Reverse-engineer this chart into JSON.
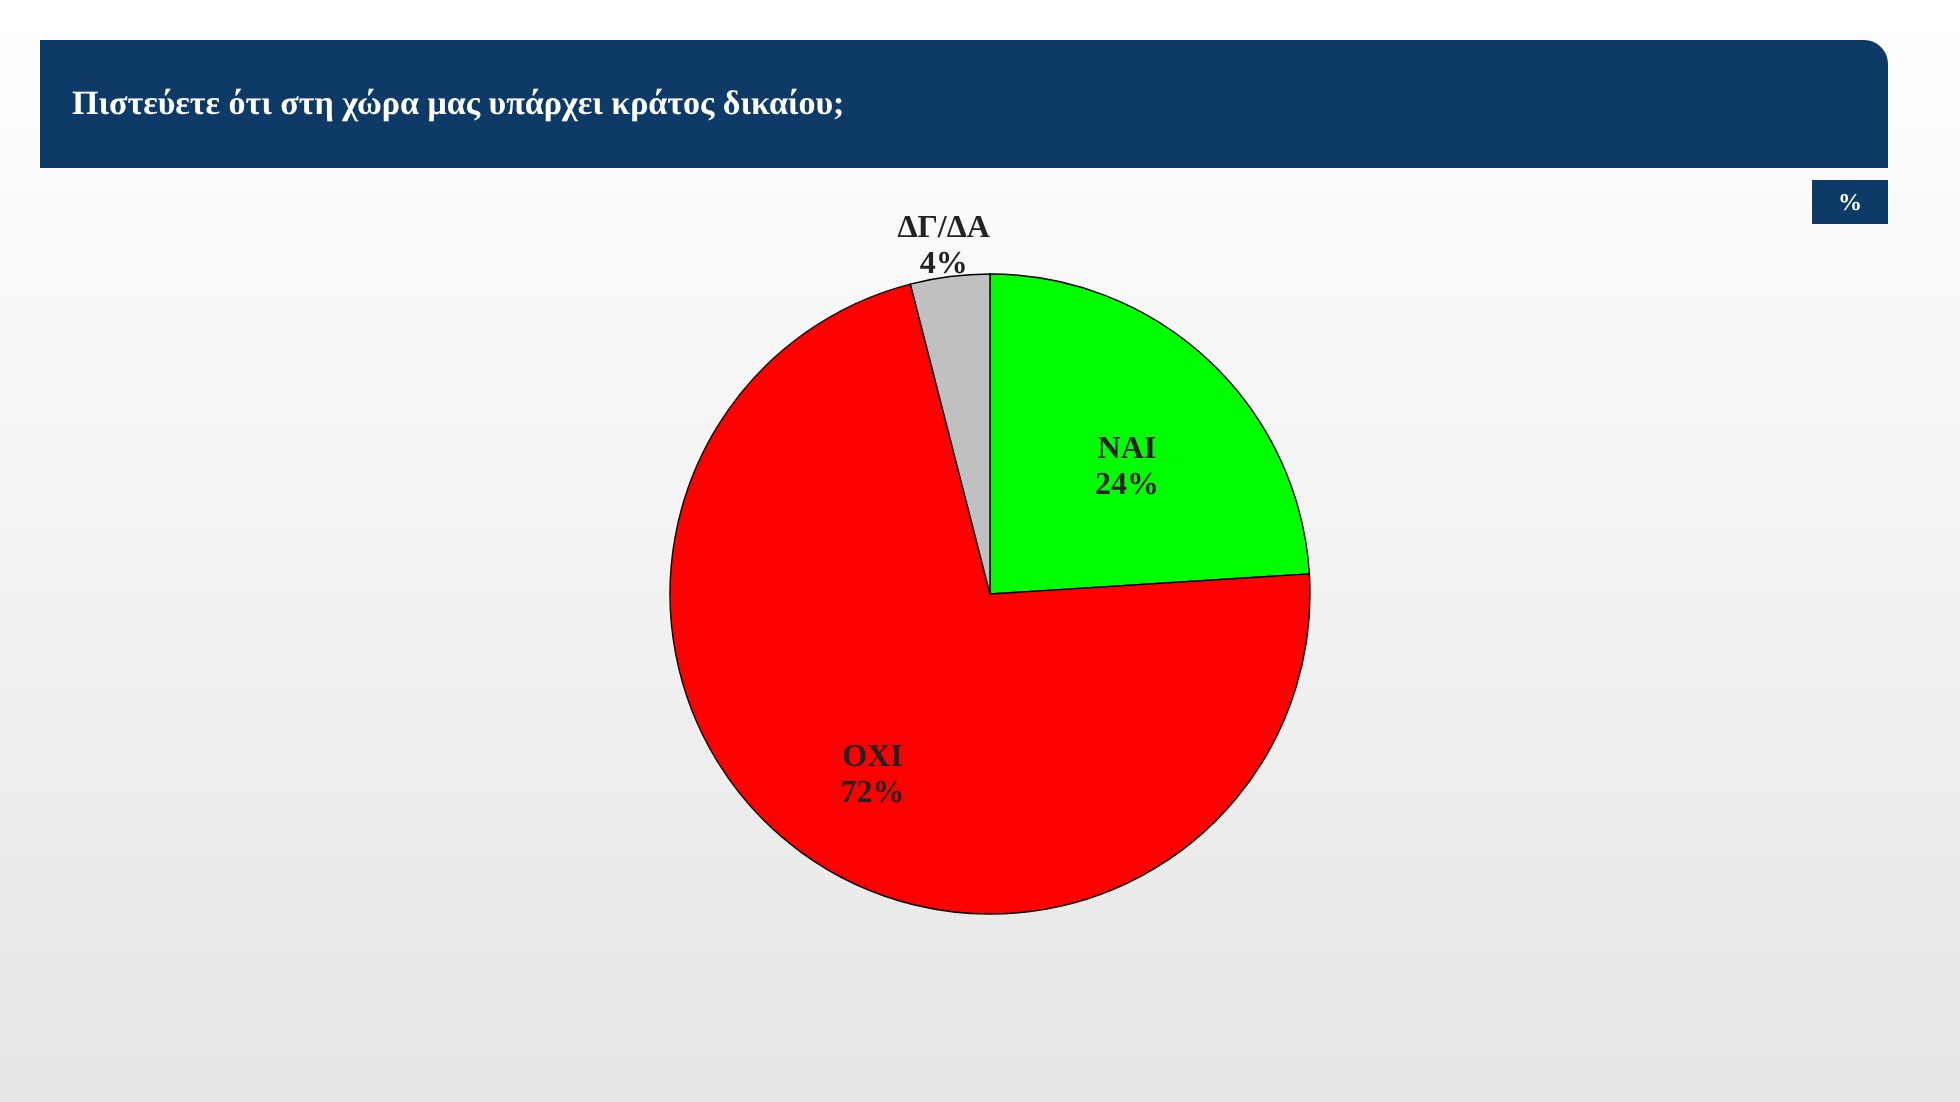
{
  "chart_data": {
    "type": "pie",
    "title": "Πιστεύετε ότι στη χώρα μας υπάρχει κράτος δικαίου;",
    "annotations": [
      "%"
    ],
    "categories": [
      "ΝΑΙ",
      "ΟΧΙ",
      "ΔΓ/ΔΑ"
    ],
    "values": [
      24,
      72,
      4
    ],
    "value_labels": [
      "24%",
      "72%",
      "4%"
    ],
    "colors": [
      "#00ff00",
      "#ff0000",
      "#c0c0c0"
    ],
    "legend": false
  }
}
